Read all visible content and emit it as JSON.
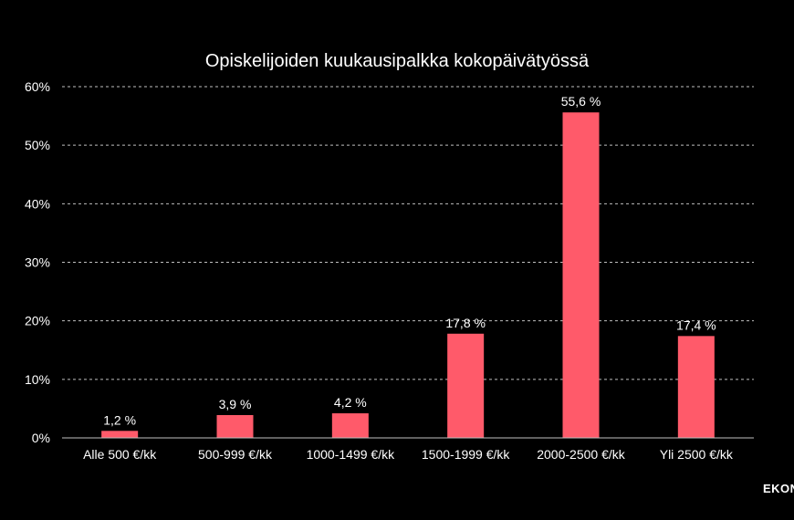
{
  "brand": "EKON",
  "colors": {
    "background": "#000000",
    "bar": "#ff5a6a",
    "grid": "#bfbfbf",
    "text": "#ffffff"
  },
  "chart_data": {
    "type": "bar",
    "title": "Opiskelijoiden kuukausipalkka kokopäivätyössä",
    "xlabel": "",
    "ylabel": "",
    "categories": [
      "Alle 500 €/kk",
      "500-999 €/kk",
      "1000-1499 €/kk",
      "1500-1999 €/kk",
      "2000-2500 €/kk",
      "Yli 2500 €/kk"
    ],
    "values": [
      1.2,
      3.9,
      4.2,
      17.8,
      55.6,
      17.4
    ],
    "data_labels": [
      "1,2 %",
      "3,9 %",
      "4,2 %",
      "17,8 %",
      "55,6 %",
      "17,4 %"
    ],
    "yticks": [
      0,
      10,
      20,
      30,
      40,
      50,
      60
    ],
    "ytick_labels": [
      "0%",
      "10%",
      "20%",
      "30%",
      "40%",
      "50%",
      "60%"
    ],
    "ylim": [
      0,
      60
    ],
    "grid": "horizontal dashed",
    "legend": "none"
  }
}
